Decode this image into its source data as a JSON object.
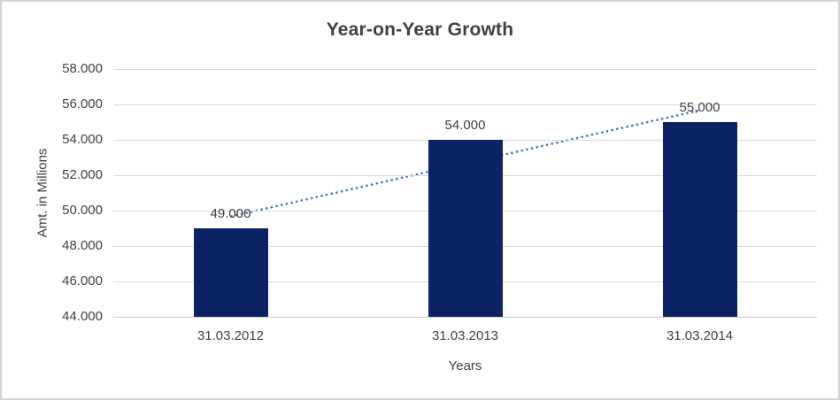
{
  "window": {
    "background": "#ffffff",
    "border_color": "#d5d5d5"
  },
  "chart_data": {
    "type": "bar",
    "title": "Year-on-Year Growth",
    "xlabel": "Years",
    "ylabel": "Amt. in Millions",
    "categories": [
      "31.03.2012",
      "31.03.2013",
      "31.03.2014"
    ],
    "values": [
      49000,
      54000,
      55000
    ],
    "data_labels": [
      "49.000",
      "54.000",
      "55,000"
    ],
    "ylim": [
      44000,
      58000
    ],
    "ytick_step": 2000,
    "ytick_labels": [
      "44.000",
      "46.000",
      "48.000",
      "50.000",
      "52.000",
      "54.000",
      "56.000",
      "58.000"
    ],
    "grid": true,
    "legend": "none",
    "bar_color": "#0B2265",
    "gridline_color": "#d9d9d9",
    "axis_line_color": "#cdcdcd",
    "text_color": "#404040",
    "trendline": {
      "type": "linear",
      "style": "dotted",
      "color": "#4472C4",
      "start_value": 49666.67,
      "end_value": 55666.67
    }
  }
}
